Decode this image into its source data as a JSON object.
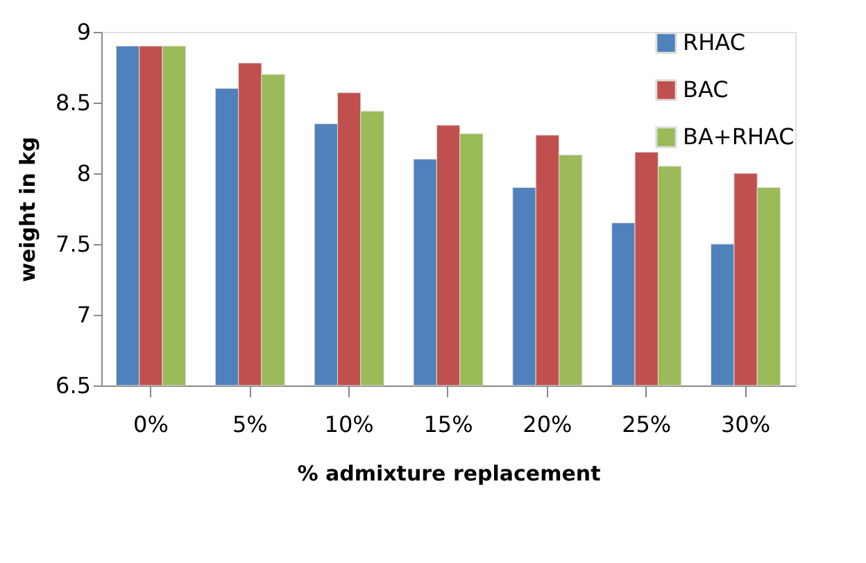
{
  "chart_data": {
    "type": "bar",
    "xlabel": "% admixture replacement",
    "ylabel": "weight in kg",
    "categories": [
      "0%",
      "5%",
      "10%",
      "15%",
      "20%",
      "25%",
      "30%"
    ],
    "series": [
      {
        "name": "RHAC",
        "color": "#4f81bd",
        "values": [
          8.9,
          8.6,
          8.35,
          8.1,
          7.9,
          7.65,
          7.5
        ]
      },
      {
        "name": "BAC",
        "color": "#c0504d",
        "values": [
          8.9,
          8.78,
          8.57,
          8.34,
          8.27,
          8.15,
          8.0
        ]
      },
      {
        "name": "BA+RHAC",
        "color": "#9bbb59",
        "values": [
          8.9,
          8.7,
          8.44,
          8.28,
          8.13,
          8.05,
          7.9
        ]
      }
    ],
    "ylim": [
      6.5,
      9
    ],
    "yticks": [
      6.5,
      7,
      7.5,
      8,
      8.5,
      9
    ],
    "grid": false,
    "legend": "top right"
  }
}
